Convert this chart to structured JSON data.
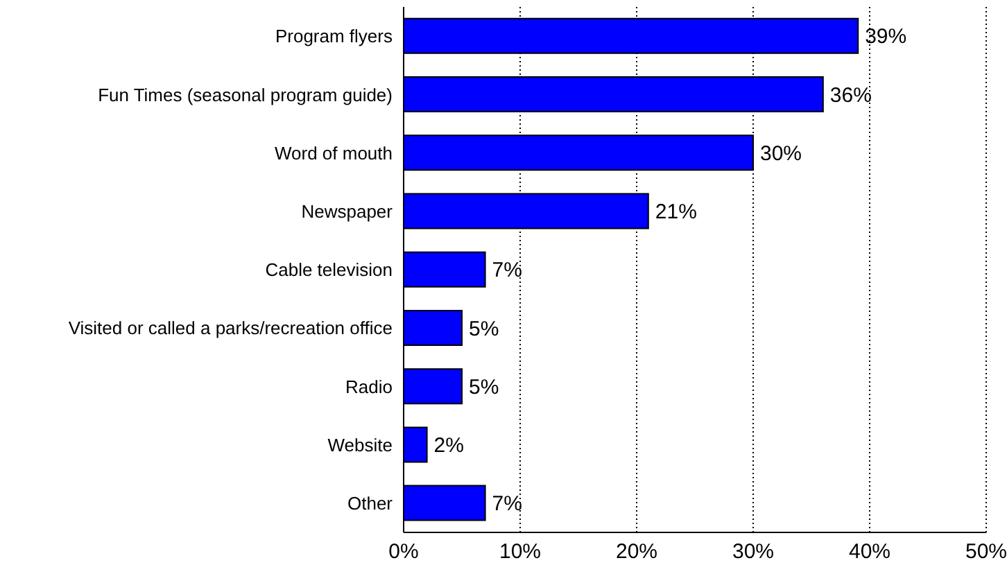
{
  "chart_data": {
    "type": "bar",
    "orientation": "horizontal",
    "categories": [
      "Program flyers",
      "Fun Times (seasonal program guide)",
      "Word of mouth",
      "Newspaper",
      "Cable television",
      "Visited or called a parks/recreation office",
      "Radio",
      "Website",
      "Other"
    ],
    "values": [
      39,
      36,
      30,
      21,
      7,
      5,
      5,
      2,
      7
    ],
    "value_labels": [
      "39%",
      "36%",
      "30%",
      "21%",
      "7%",
      "5%",
      "5%",
      "2%",
      "7%"
    ],
    "color": "#0000ff",
    "xlim": [
      0,
      50
    ],
    "xticks": [
      {
        "value": 0,
        "label": "0%"
      },
      {
        "value": 10,
        "label": "10%"
      },
      {
        "value": 20,
        "label": "20%"
      },
      {
        "value": 30,
        "label": "30%"
      },
      {
        "value": 40,
        "label": "40%"
      },
      {
        "value": 50,
        "label": "50%"
      }
    ],
    "grid": "x"
  }
}
